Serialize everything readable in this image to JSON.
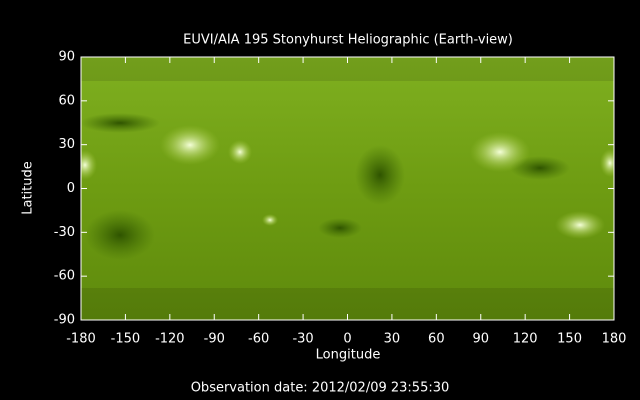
{
  "chart_data": {
    "type": "image",
    "title": "EUVI/AIA 195 Stonyhurst Heliographic (Earth-view)",
    "xlabel": "Longitude",
    "ylabel": "Latitude",
    "annotation": "Observation date: 2012/02/09 23:55:30",
    "xlim": [
      -180,
      180
    ],
    "xticks": [
      -180,
      -150,
      -120,
      -90,
      -60,
      -30,
      0,
      30,
      60,
      90,
      120,
      150,
      180
    ],
    "ylim": [
      -90,
      90
    ],
    "yticks": [
      -90,
      -60,
      -30,
      0,
      30,
      60,
      90
    ]
  }
}
